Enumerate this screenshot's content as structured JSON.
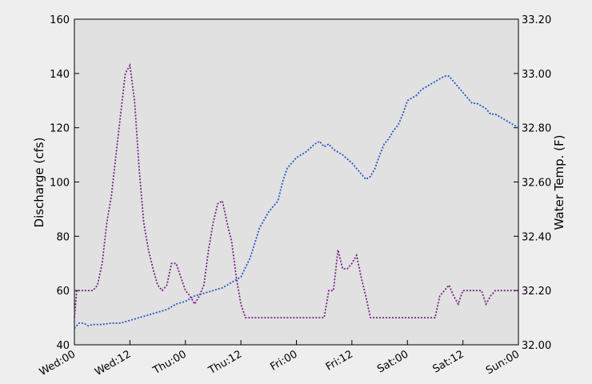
{
  "chart_data": {
    "type": "line",
    "title": "",
    "xlabel": "",
    "ylabel": "Discharge (cfs)",
    "y2label": "Water Temp. (F)",
    "x_ticks": [
      "Wed:00",
      "Wed:12",
      "Thu:00",
      "Thu:12",
      "Fri:00",
      "Fri:12",
      "Sat:00",
      "Sat:12",
      "Sun:00"
    ],
    "xlim_hours": [
      0,
      96
    ],
    "ylim": [
      40,
      160
    ],
    "y_ticks": [
      "40",
      "60",
      "80",
      "100",
      "120",
      "140",
      "160"
    ],
    "y2lim": [
      32.0,
      33.2
    ],
    "y2_ticks": [
      "32.00",
      "32.20",
      "32.40",
      "32.60",
      "32.80",
      "33.00",
      "33.20"
    ],
    "grid": false,
    "background": "#e1e1e1",
    "series": [
      {
        "axis": "left",
        "color": "#2255cc",
        "style": "dotted",
        "points": [
          [
            0,
            46
          ],
          [
            1,
            48
          ],
          [
            2,
            48
          ],
          [
            3,
            47
          ],
          [
            4,
            47.5
          ],
          [
            6,
            47.5
          ],
          [
            8,
            48
          ],
          [
            10,
            48
          ],
          [
            12,
            49
          ],
          [
            14,
            50
          ],
          [
            16,
            51
          ],
          [
            18,
            52
          ],
          [
            20,
            53
          ],
          [
            22,
            55
          ],
          [
            24,
            56
          ],
          [
            26,
            58
          ],
          [
            28,
            59
          ],
          [
            30,
            60
          ],
          [
            32,
            61
          ],
          [
            34,
            63
          ],
          [
            36,
            65
          ],
          [
            38,
            72
          ],
          [
            40,
            83
          ],
          [
            42,
            89
          ],
          [
            44,
            93
          ],
          [
            45,
            100
          ],
          [
            46,
            105
          ],
          [
            48,
            109
          ],
          [
            50,
            111
          ],
          [
            52,
            114
          ],
          [
            53,
            115
          ],
          [
            54,
            113
          ],
          [
            55,
            114
          ],
          [
            56,
            112
          ],
          [
            58,
            110
          ],
          [
            60,
            107
          ],
          [
            62,
            103
          ],
          [
            63,
            101
          ],
          [
            64,
            102
          ],
          [
            65,
            105
          ],
          [
            66,
            110
          ],
          [
            67,
            114
          ],
          [
            68,
            116
          ],
          [
            69,
            119
          ],
          [
            70,
            121
          ],
          [
            71,
            125
          ],
          [
            72,
            130
          ],
          [
            74,
            132
          ],
          [
            75,
            134
          ],
          [
            76,
            135
          ],
          [
            77,
            136
          ],
          [
            78,
            137
          ],
          [
            79,
            138
          ],
          [
            80,
            139
          ],
          [
            81,
            139
          ],
          [
            82,
            137
          ],
          [
            83,
            135
          ],
          [
            84,
            133
          ],
          [
            85,
            131
          ],
          [
            86,
            129
          ],
          [
            87,
            129
          ],
          [
            88,
            128
          ],
          [
            89,
            127
          ],
          [
            90,
            125
          ],
          [
            91,
            125
          ],
          [
            92,
            124
          ],
          [
            93,
            123
          ],
          [
            94,
            122
          ],
          [
            95,
            121
          ],
          [
            96,
            120
          ]
        ]
      },
      {
        "axis": "right",
        "color": "#772288",
        "style": "dotted",
        "points": [
          [
            0,
            32.1
          ],
          [
            0.5,
            32.2
          ],
          [
            4,
            32.2
          ],
          [
            5,
            32.22
          ],
          [
            6,
            32.3
          ],
          [
            7,
            32.45
          ],
          [
            8,
            32.55
          ],
          [
            9,
            32.7
          ],
          [
            10,
            32.85
          ],
          [
            11,
            33.0
          ],
          [
            12,
            33.03
          ],
          [
            13,
            32.9
          ],
          [
            14,
            32.65
          ],
          [
            15,
            32.45
          ],
          [
            16,
            32.35
          ],
          [
            17,
            32.28
          ],
          [
            18,
            32.22
          ],
          [
            19,
            32.2
          ],
          [
            20,
            32.22
          ],
          [
            21,
            32.3
          ],
          [
            22,
            32.3
          ],
          [
            23,
            32.25
          ],
          [
            24,
            32.2
          ],
          [
            25,
            32.18
          ],
          [
            26,
            32.15
          ],
          [
            27,
            32.18
          ],
          [
            28,
            32.22
          ],
          [
            29,
            32.35
          ],
          [
            30,
            32.45
          ],
          [
            31,
            32.52
          ],
          [
            32,
            32.53
          ],
          [
            33,
            32.45
          ],
          [
            34,
            32.38
          ],
          [
            35,
            32.25
          ],
          [
            36,
            32.15
          ],
          [
            37,
            32.1
          ],
          [
            38,
            32.1
          ],
          [
            49,
            32.1
          ],
          [
            54,
            32.1
          ],
          [
            55,
            32.2
          ],
          [
            56,
            32.2
          ],
          [
            57,
            32.35
          ],
          [
            58,
            32.28
          ],
          [
            59,
            32.28
          ],
          [
            60,
            32.3
          ],
          [
            61,
            32.33
          ],
          [
            62,
            32.25
          ],
          [
            63,
            32.18
          ],
          [
            64,
            32.1
          ],
          [
            78,
            32.1
          ],
          [
            79,
            32.18
          ],
          [
            80,
            32.2
          ],
          [
            81,
            32.22
          ],
          [
            82,
            32.18
          ],
          [
            83,
            32.15
          ],
          [
            84,
            32.2
          ],
          [
            88,
            32.2
          ],
          [
            89,
            32.15
          ],
          [
            90,
            32.18
          ],
          [
            91,
            32.2
          ],
          [
            93,
            32.2
          ],
          [
            96,
            32.2
          ]
        ]
      }
    ]
  }
}
